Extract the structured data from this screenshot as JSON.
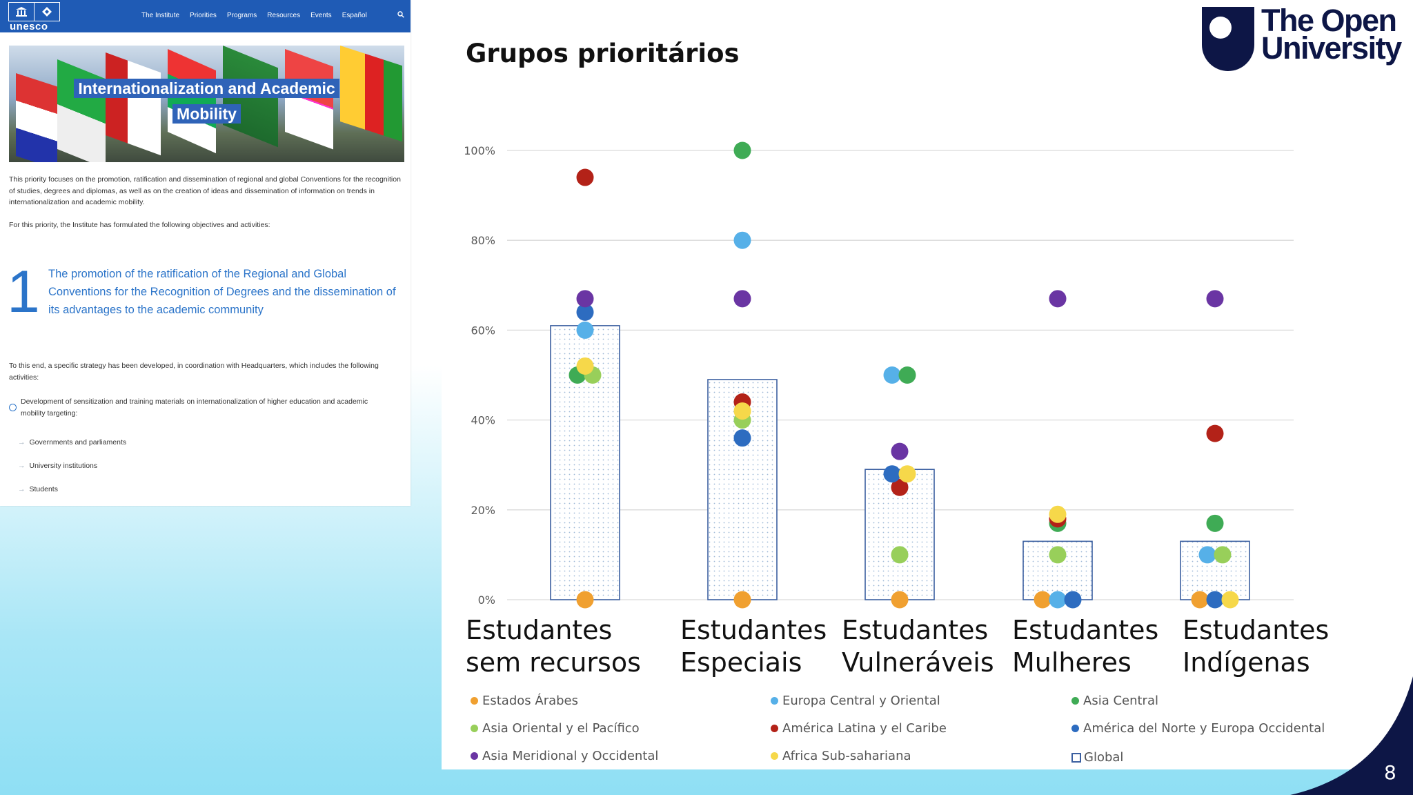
{
  "unesco": {
    "wordmark": "unesco",
    "nav": [
      "The Institute",
      "Priorities",
      "Programs",
      "Resources",
      "Events",
      "Español"
    ],
    "hero_title_line1": "Internationalization and Academic",
    "hero_title_line2": "Mobility",
    "intro": "This priority focuses on the promotion, ratification and dissemination of regional and global Conventions for the recognition of studies, degrees and diplomas, as well as on the creation of ideas and dissemination of information on trends in internationalization and academic mobility.",
    "objectives_intro": "For this priority, the Institute has formulated the following objectives and activities:",
    "objective_number": "1",
    "objective_text": "The promotion of the ratification of the Regional and Global Conventions for the Recognition of Degrees and the dissemination of its advantages to the academic community",
    "strategy_text": "To this end, a specific strategy has been developed, in coordination with Headquarters, which includes the following activities:",
    "activity_text": "Development of sensitization and training materials on internationalization of higher education and academic mobility targeting:",
    "targets": [
      "Governments and parliaments",
      "University institutions",
      "Students"
    ]
  },
  "slide": {
    "title": "Grupos prioritários",
    "logo_line1": "The Open",
    "logo_line2": "University",
    "page_number": "8"
  },
  "colors": {
    "Estados Árabes": "#f0a030",
    "Europa Central y Oriental": "#56b0e8",
    "Asia Central": "#3fab55",
    "Asia Oriental y el Pacífico": "#98cf5a",
    "América Latina y el Caribe": "#b32218",
    "América del Norte y Europa Occidental": "#2d6cc0",
    "Asia Meridional y Occidental": "#6a35a3",
    "Africa Sub-sahariana": "#f6d84a",
    "Global": "#3b5fa0",
    "unesco_blue": "#1f5bb5",
    "ou_navy": "#0d1646"
  },
  "chart_data": {
    "type": "bar",
    "title": "",
    "ylim": [
      0,
      100
    ],
    "yticks": [
      "0%",
      "20%",
      "40%",
      "60%",
      "80%",
      "100%"
    ],
    "y_tick_values": [
      0,
      20,
      40,
      60,
      80,
      100
    ],
    "grid": true,
    "legend_position": "bottom",
    "categories": [
      [
        "Estudantes",
        "sem recursos"
      ],
      [
        "Estudantes",
        "Especiais"
      ],
      [
        "Estudantes",
        "Vulneráveis"
      ],
      [
        "Estudantes",
        "Mulheres"
      ],
      [
        "Estudantes",
        "Indígenas"
      ]
    ],
    "bars": {
      "name": "Global",
      "values": [
        61,
        49,
        29,
        13,
        13
      ]
    },
    "series": [
      {
        "name": "Estados Árabes",
        "values": [
          0,
          0,
          0,
          0,
          0
        ]
      },
      {
        "name": "Europa Central y Oriental",
        "values": [
          60,
          80,
          50,
          0,
          10
        ]
      },
      {
        "name": "Asia Central",
        "values": [
          50,
          100,
          50,
          17,
          17
        ]
      },
      {
        "name": "Asia Oriental y el Pacífico",
        "values": [
          50,
          40,
          10,
          10,
          10
        ]
      },
      {
        "name": "América Latina y el Caribe",
        "values": [
          94,
          44,
          25,
          18,
          37
        ]
      },
      {
        "name": "América del Norte y Europa Occidental",
        "values": [
          64,
          36,
          28,
          0,
          0
        ]
      },
      {
        "name": "Asia Meridional y Occidental",
        "values": [
          67,
          67,
          33,
          67,
          67
        ]
      },
      {
        "name": "Africa Sub-sahariana",
        "values": [
          52,
          42,
          28,
          19,
          0
        ]
      }
    ]
  }
}
